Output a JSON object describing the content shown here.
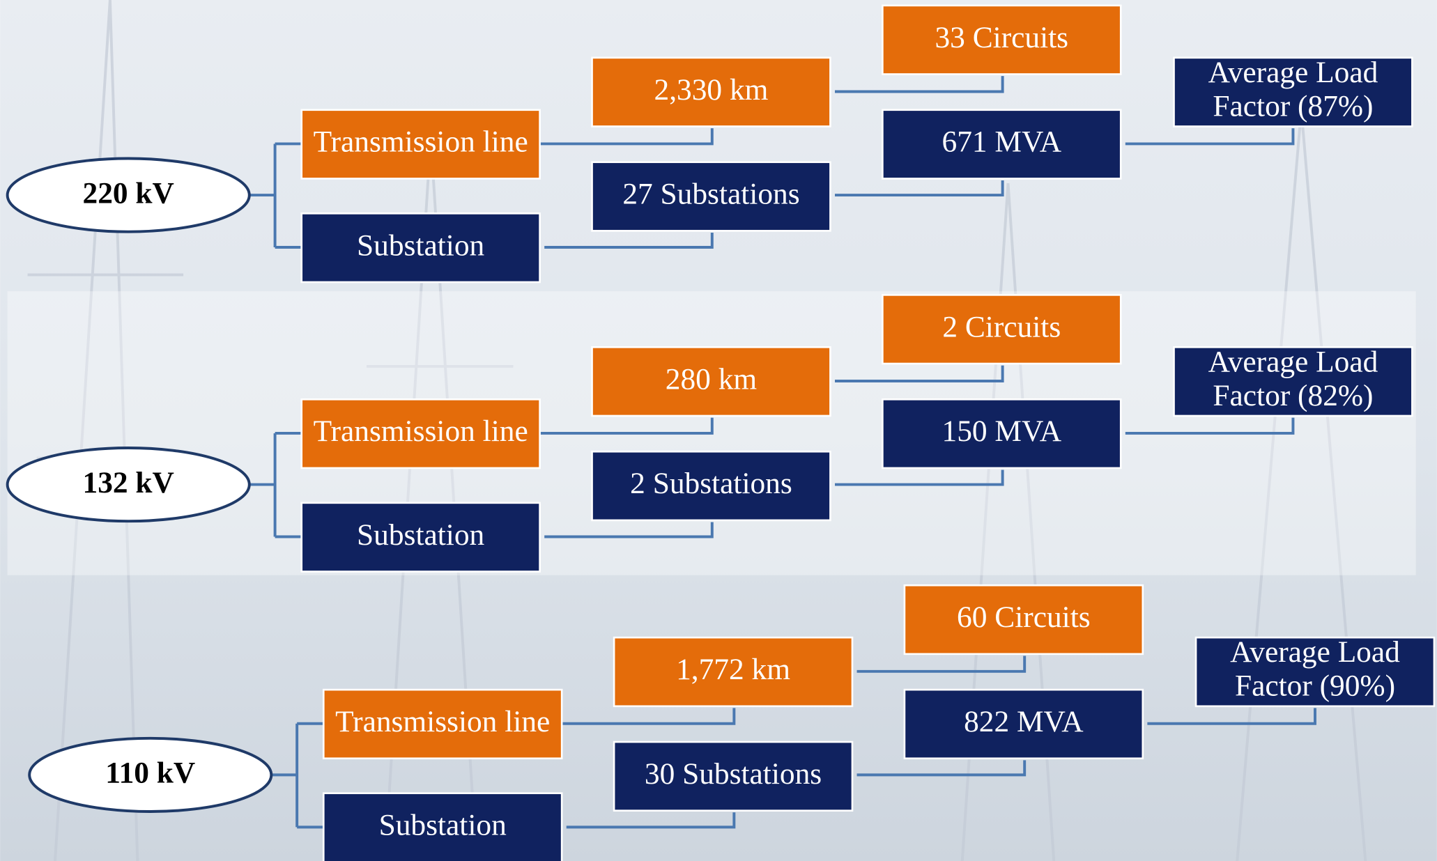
{
  "groups": [
    {
      "voltage": "220 kV",
      "line_label": "Transmission line",
      "substation_label": "Substation",
      "length": "2,330 km",
      "substations": "27 Substations",
      "circuits": "33 Circuits",
      "capacity": "671 MVA",
      "load_factor": [
        "Average Load",
        "Factor (87%)"
      ]
    },
    {
      "voltage": "132 kV",
      "line_label": "Transmission line",
      "substation_label": "Substation",
      "length": "280 km",
      "substations": "2 Substations",
      "circuits": "2 Circuits",
      "capacity": "150 MVA",
      "load_factor": [
        "Average Load",
        "Factor (82%)"
      ]
    },
    {
      "voltage": "110 kV",
      "line_label": "Transmission line",
      "substation_label": "Substation",
      "length": "1,772 km",
      "substations": "30 Substations",
      "circuits": "60 Circuits",
      "capacity": "822 MVA",
      "load_factor": [
        "Average Load",
        "Factor (90%)"
      ]
    }
  ]
}
